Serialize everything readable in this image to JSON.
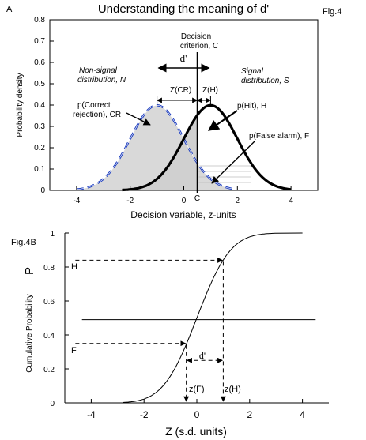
{
  "chart_data": [
    {
      "type": "area",
      "panel_label": "A",
      "title": "Understanding the meaning of d'",
      "fig_label": "Fig.4",
      "xlabel": "Decision variable, z-units",
      "ylabel": "Probability density",
      "xlim": [
        -5,
        5
      ],
      "ylim": [
        0,
        0.8
      ],
      "x_ticks": [
        "-4",
        "-2",
        "0",
        "2",
        "4"
      ],
      "x_tick_values": [
        -4,
        -2,
        0,
        2,
        4
      ],
      "y_ticks": [
        "0",
        "0.1",
        "0.2",
        "0.3",
        "0.4",
        "0.5",
        "0.6",
        "0.7",
        "0.8"
      ],
      "y_tick_values": [
        0,
        0.1,
        0.2,
        0.3,
        0.4,
        0.5,
        0.6,
        0.7,
        0.8
      ],
      "grid": false,
      "criterion_x": 0.5,
      "criterion_tick_label": "C",
      "series": [
        {
          "role": "noise",
          "mean": -1.0,
          "sd": 1.0,
          "x_range": [
            -4,
            1.8
          ],
          "style": "dashed",
          "color": "#1f3fbf"
        },
        {
          "role": "signal",
          "mean": 1.0,
          "sd": 1.0,
          "x_range": [
            -2.3,
            4.0
          ],
          "style": "solid",
          "color": "#000000"
        }
      ],
      "annotations": {
        "criterion_line1": "Decision",
        "criterion_line2": "criterion, C",
        "dprime": "d'",
        "noise_line1": "Non-signal",
        "noise_line2": "distribution, N",
        "signal_line1": "Signal",
        "signal_line2": "distribution, S",
        "zcr": "Z(CR)",
        "zh": "Z(H)",
        "cr_line1": "p(Correct",
        "cr_line2": "rejection), CR",
        "hit": "p(Hit), H",
        "fa": "p(False alarm), F"
      }
    },
    {
      "type": "line",
      "fig_label": "Fig.4B",
      "xlabel": "Z (s.d. units)",
      "ylabel": "Cumulative Probability",
      "y_symbol": "P",
      "xlim": [
        -5,
        5
      ],
      "ylim": [
        0,
        1
      ],
      "x_ticks": [
        "-4",
        "-2",
        "0",
        "2",
        "4"
      ],
      "x_tick_values": [
        -4,
        -2,
        0,
        2,
        4
      ],
      "y_ticks": [
        "0",
        "0.2",
        "0.4",
        "0.6",
        "0.8",
        "1"
      ],
      "y_tick_values": [
        0,
        0.2,
        0.4,
        0.6,
        0.8,
        1
      ],
      "grid": false,
      "curve": {
        "kind": "normal-cdf",
        "mean": 0,
        "sd": 1,
        "x_range": [
          -2.8,
          3.0
        ]
      },
      "reference_line_y": 0.49,
      "hit_rate": 0.84,
      "fa_rate": 0.35,
      "zF": -0.4,
      "zH": 1.0,
      "annotations": {
        "h": "H",
        "f": "F",
        "dprime": "d'",
        "zf": "z(F)",
        "zh": "z(H)"
      }
    }
  ]
}
